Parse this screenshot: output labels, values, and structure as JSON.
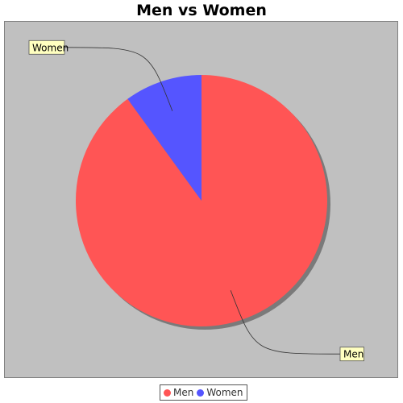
{
  "chart_data": {
    "type": "pie",
    "title": "Men vs Women",
    "categories": [
      "Men",
      "Women"
    ],
    "values": [
      90,
      10
    ],
    "colors": [
      "#ff5555",
      "#5555ff"
    ],
    "legend": "bottom",
    "background_color": "#c0c0c0"
  }
}
